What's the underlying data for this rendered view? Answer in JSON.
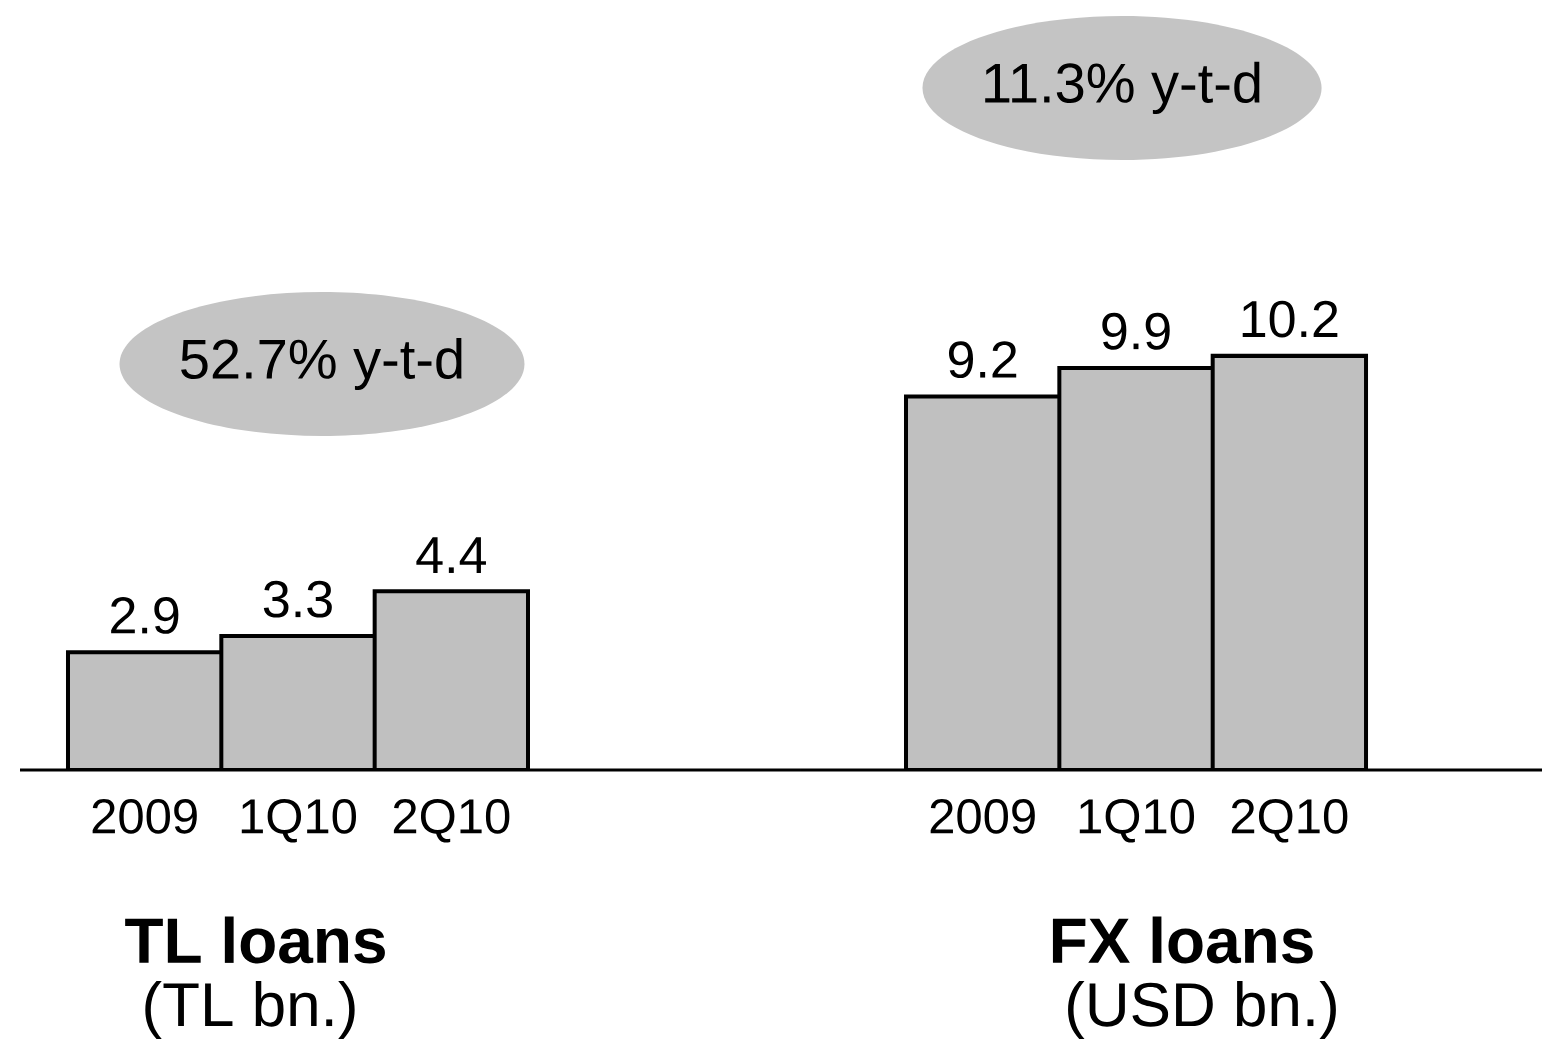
{
  "chart_data": [
    {
      "type": "bar",
      "title": "TL loans",
      "subtitle": "(TL bn.)",
      "categories": [
        "2009",
        "1Q10",
        "2Q10"
      ],
      "values": [
        2.9,
        3.3,
        4.4
      ],
      "color": "#c0c0c0",
      "data_labels": true,
      "tick_labels": "x",
      "annotations": [
        "52.7% y-t-d"
      ]
    },
    {
      "type": "bar",
      "title": "FX loans",
      "subtitle": "(USD bn.)",
      "categories": [
        "2009",
        "1Q10",
        "2Q10"
      ],
      "values": [
        9.2,
        9.9,
        10.2
      ],
      "color": "#c0c0c0",
      "data_labels": true,
      "tick_labels": "x",
      "annotations": [
        "11.3% y-t-d"
      ]
    }
  ]
}
